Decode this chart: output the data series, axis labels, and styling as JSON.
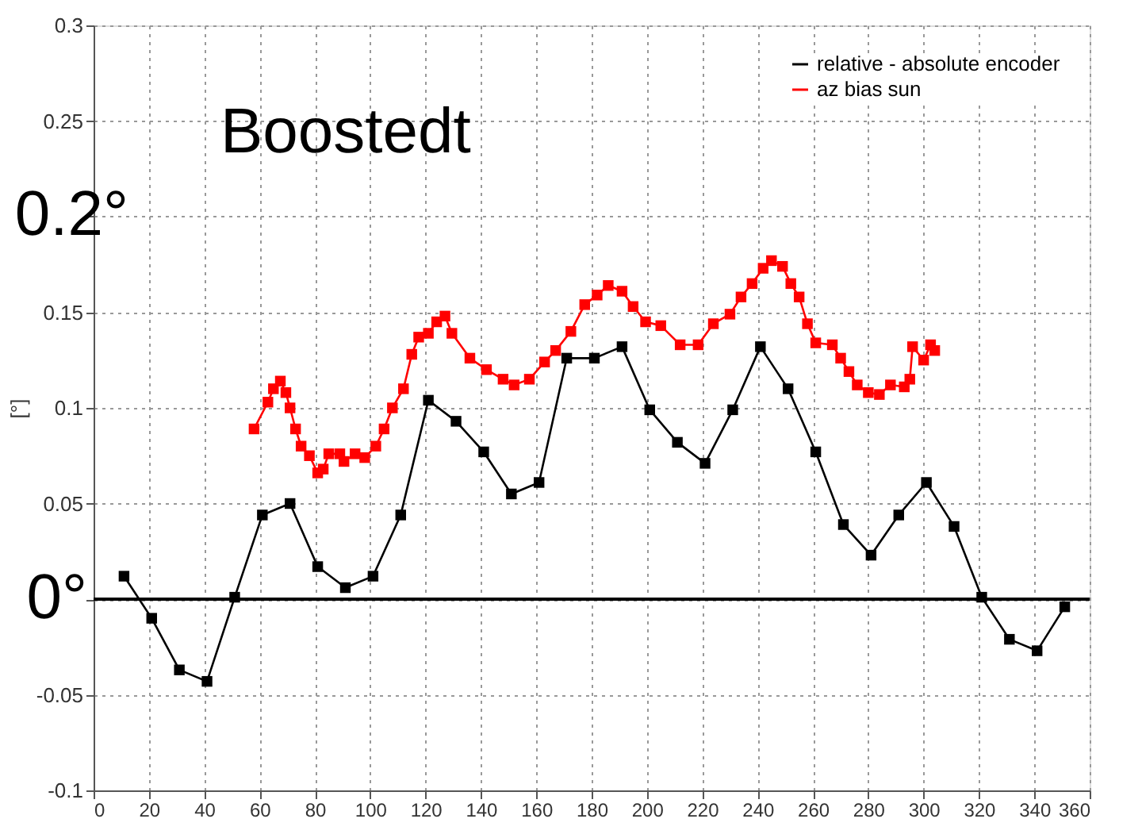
{
  "chart_data": {
    "type": "line",
    "ylabel": "[°]",
    "xlim": [
      0,
      360
    ],
    "xticks": [
      0,
      20,
      40,
      60,
      80,
      100,
      120,
      140,
      160,
      180,
      200,
      220,
      240,
      260,
      280,
      300,
      320,
      340,
      360
    ],
    "ylim": [
      -0.1,
      0.3
    ],
    "yticks": [
      -0.1,
      -0.05,
      {
        "value": 0,
        "label": null
      },
      0.05,
      0.1,
      0.15,
      {
        "value": 0.2,
        "label": null
      },
      0.25,
      0.3
    ],
    "grid": true,
    "legend": "top right",
    "marker": "square",
    "line_style": "solid",
    "annotations": [
      "Boostedt",
      "0.2°",
      {
        "text": "0°",
        "x": 0,
        "y": 0
      }
    ],
    "ref_lines": [
      {
        "axis": "y",
        "value": 0,
        "color": "#000000"
      }
    ],
    "series": [
      {
        "name": "relative - absolute encoder",
        "color": "#000000",
        "x": [
          11,
          21,
          31,
          41,
          51,
          61,
          71,
          81,
          91,
          101,
          111,
          121,
          131,
          141,
          151,
          161,
          171,
          181,
          191,
          201,
          211,
          221,
          231,
          241,
          251,
          261,
          271,
          281,
          291,
          301,
          311,
          321,
          331,
          341,
          351
        ],
        "values": [
          0.012,
          -0.01,
          -0.037,
          -0.043,
          0.001,
          0.044,
          0.05,
          0.017,
          0.006,
          0.012,
          0.044,
          0.104,
          0.093,
          0.077,
          0.055,
          0.061,
          0.126,
          0.126,
          0.132,
          0.099,
          0.082,
          0.071,
          0.099,
          0.132,
          0.11,
          0.077,
          0.039,
          0.023,
          0.044,
          0.061,
          0.038,
          0.001,
          -0.021,
          -0.027,
          -0.004
        ]
      },
      {
        "name": "az bias sun",
        "color": "#ff0000",
        "x": [
          58,
          63,
          65,
          67.5,
          69.5,
          71,
          73,
          75,
          78,
          81,
          83,
          85,
          89,
          90.5,
          94.5,
          98,
          102,
          105,
          108,
          112,
          115,
          117.5,
          121,
          124,
          127,
          129.5,
          136,
          142,
          148,
          152,
          157.5,
          163,
          167,
          172.5,
          177.5,
          182,
          186,
          191,
          195,
          199.5,
          205,
          212,
          218.5,
          224,
          230,
          234,
          238,
          242,
          245,
          249,
          252,
          255,
          258,
          261,
          267,
          270,
          273,
          276,
          280,
          284,
          288,
          293,
          295,
          296,
          300,
          302.5,
          304
        ],
        "values": [
          0.089,
          0.103,
          0.11,
          0.114,
          0.108,
          0.1,
          0.089,
          0.08,
          0.075,
          0.066,
          0.068,
          0.076,
          0.076,
          0.072,
          0.076,
          0.074,
          0.08,
          0.089,
          0.1,
          0.11,
          0.128,
          0.137,
          0.139,
          0.145,
          0.148,
          0.139,
          0.126,
          0.12,
          0.115,
          0.112,
          0.115,
          0.124,
          0.13,
          0.14,
          0.154,
          0.159,
          0.164,
          0.161,
          0.153,
          0.145,
          0.143,
          0.133,
          0.133,
          0.144,
          0.149,
          0.158,
          0.165,
          0.173,
          0.177,
          0.174,
          0.165,
          0.158,
          0.144,
          0.134,
          0.133,
          0.126,
          0.119,
          0.112,
          0.108,
          0.107,
          0.112,
          0.111,
          0.115,
          0.132,
          0.125,
          0.133,
          0.13
        ]
      }
    ]
  }
}
